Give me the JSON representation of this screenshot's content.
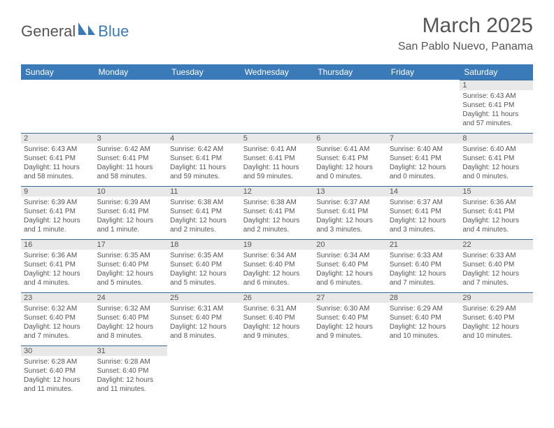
{
  "logo": {
    "text_general": "General",
    "text_blue": "Blue",
    "shape_color": "#3a7ab8"
  },
  "title": "March 2025",
  "subtitle": "San Pablo Nuevo, Panama",
  "header_bg": "#3a7ab8",
  "daynum_bg": "#e8e8e8",
  "border_color": "#3a6a9a",
  "days": [
    "Sunday",
    "Monday",
    "Tuesday",
    "Wednesday",
    "Thursday",
    "Friday",
    "Saturday"
  ],
  "weeks": [
    [
      null,
      null,
      null,
      null,
      null,
      null,
      {
        "n": "1",
        "sr": "6:43 AM",
        "ss": "6:41 PM",
        "dl": "11 hours and 57 minutes."
      }
    ],
    [
      {
        "n": "2",
        "sr": "6:43 AM",
        "ss": "6:41 PM",
        "dl": "11 hours and 58 minutes."
      },
      {
        "n": "3",
        "sr": "6:42 AM",
        "ss": "6:41 PM",
        "dl": "11 hours and 58 minutes."
      },
      {
        "n": "4",
        "sr": "6:42 AM",
        "ss": "6:41 PM",
        "dl": "11 hours and 59 minutes."
      },
      {
        "n": "5",
        "sr": "6:41 AM",
        "ss": "6:41 PM",
        "dl": "11 hours and 59 minutes."
      },
      {
        "n": "6",
        "sr": "6:41 AM",
        "ss": "6:41 PM",
        "dl": "12 hours and 0 minutes."
      },
      {
        "n": "7",
        "sr": "6:40 AM",
        "ss": "6:41 PM",
        "dl": "12 hours and 0 minutes."
      },
      {
        "n": "8",
        "sr": "6:40 AM",
        "ss": "6:41 PM",
        "dl": "12 hours and 0 minutes."
      }
    ],
    [
      {
        "n": "9",
        "sr": "6:39 AM",
        "ss": "6:41 PM",
        "dl": "12 hours and 1 minute."
      },
      {
        "n": "10",
        "sr": "6:39 AM",
        "ss": "6:41 PM",
        "dl": "12 hours and 1 minute."
      },
      {
        "n": "11",
        "sr": "6:38 AM",
        "ss": "6:41 PM",
        "dl": "12 hours and 2 minutes."
      },
      {
        "n": "12",
        "sr": "6:38 AM",
        "ss": "6:41 PM",
        "dl": "12 hours and 2 minutes."
      },
      {
        "n": "13",
        "sr": "6:37 AM",
        "ss": "6:41 PM",
        "dl": "12 hours and 3 minutes."
      },
      {
        "n": "14",
        "sr": "6:37 AM",
        "ss": "6:41 PM",
        "dl": "12 hours and 3 minutes."
      },
      {
        "n": "15",
        "sr": "6:36 AM",
        "ss": "6:41 PM",
        "dl": "12 hours and 4 minutes."
      }
    ],
    [
      {
        "n": "16",
        "sr": "6:36 AM",
        "ss": "6:41 PM",
        "dl": "12 hours and 4 minutes."
      },
      {
        "n": "17",
        "sr": "6:35 AM",
        "ss": "6:40 PM",
        "dl": "12 hours and 5 minutes."
      },
      {
        "n": "18",
        "sr": "6:35 AM",
        "ss": "6:40 PM",
        "dl": "12 hours and 5 minutes."
      },
      {
        "n": "19",
        "sr": "6:34 AM",
        "ss": "6:40 PM",
        "dl": "12 hours and 6 minutes."
      },
      {
        "n": "20",
        "sr": "6:34 AM",
        "ss": "6:40 PM",
        "dl": "12 hours and 6 minutes."
      },
      {
        "n": "21",
        "sr": "6:33 AM",
        "ss": "6:40 PM",
        "dl": "12 hours and 7 minutes."
      },
      {
        "n": "22",
        "sr": "6:33 AM",
        "ss": "6:40 PM",
        "dl": "12 hours and 7 minutes."
      }
    ],
    [
      {
        "n": "23",
        "sr": "6:32 AM",
        "ss": "6:40 PM",
        "dl": "12 hours and 7 minutes."
      },
      {
        "n": "24",
        "sr": "6:32 AM",
        "ss": "6:40 PM",
        "dl": "12 hours and 8 minutes."
      },
      {
        "n": "25",
        "sr": "6:31 AM",
        "ss": "6:40 PM",
        "dl": "12 hours and 8 minutes."
      },
      {
        "n": "26",
        "sr": "6:31 AM",
        "ss": "6:40 PM",
        "dl": "12 hours and 9 minutes."
      },
      {
        "n": "27",
        "sr": "6:30 AM",
        "ss": "6:40 PM",
        "dl": "12 hours and 9 minutes."
      },
      {
        "n": "28",
        "sr": "6:29 AM",
        "ss": "6:40 PM",
        "dl": "12 hours and 10 minutes."
      },
      {
        "n": "29",
        "sr": "6:29 AM",
        "ss": "6:40 PM",
        "dl": "12 hours and 10 minutes."
      }
    ],
    [
      {
        "n": "30",
        "sr": "6:28 AM",
        "ss": "6:40 PM",
        "dl": "12 hours and 11 minutes."
      },
      {
        "n": "31",
        "sr": "6:28 AM",
        "ss": "6:40 PM",
        "dl": "12 hours and 11 minutes."
      },
      null,
      null,
      null,
      null,
      null
    ]
  ],
  "labels": {
    "sunrise": "Sunrise:",
    "sunset": "Sunset:",
    "daylight": "Daylight:"
  }
}
